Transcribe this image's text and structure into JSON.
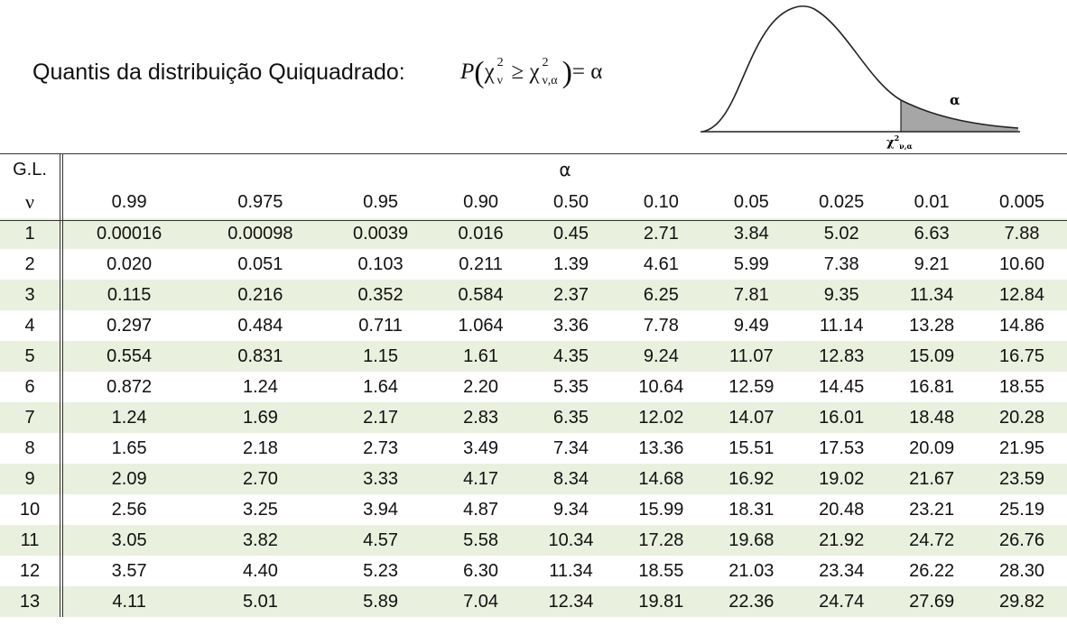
{
  "title": "Quantis da distribuição Quiquadrado:",
  "formula": {
    "p": "P",
    "chi": "χ",
    "sup": "2",
    "sub_nu": "ν",
    "sub_nu_alpha": "ν,α",
    "geq": "≥",
    "eq_alpha": "= α"
  },
  "curve_labels": {
    "alpha": "α",
    "chi": "χ",
    "chi_sup": "2",
    "chi_sub": "ν,α"
  },
  "table": {
    "gl_label": "G.L.",
    "nu_label": "ν",
    "alpha_label": "α",
    "alphas": [
      "0.99",
      "0.975",
      "0.95",
      "0.90",
      "0.50",
      "0.10",
      "0.05",
      "0.025",
      "0.01",
      "0.005"
    ],
    "rows": [
      {
        "nu": "1",
        "vals": [
          "0.00016",
          "0.00098",
          "0.0039",
          "0.016",
          "0.45",
          "2.71",
          "3.84",
          "5.02",
          "6.63",
          "7.88"
        ]
      },
      {
        "nu": "2",
        "vals": [
          "0.020",
          "0.051",
          "0.103",
          "0.211",
          "1.39",
          "4.61",
          "5.99",
          "7.38",
          "9.21",
          "10.60"
        ]
      },
      {
        "nu": "3",
        "vals": [
          "0.115",
          "0.216",
          "0.352",
          "0.584",
          "2.37",
          "6.25",
          "7.81",
          "9.35",
          "11.34",
          "12.84"
        ]
      },
      {
        "nu": "4",
        "vals": [
          "0.297",
          "0.484",
          "0.711",
          "1.064",
          "3.36",
          "7.78",
          "9.49",
          "11.14",
          "13.28",
          "14.86"
        ]
      },
      {
        "nu": "5",
        "vals": [
          "0.554",
          "0.831",
          "1.15",
          "1.61",
          "4.35",
          "9.24",
          "11.07",
          "12.83",
          "15.09",
          "16.75"
        ]
      },
      {
        "nu": "6",
        "vals": [
          "0.872",
          "1.24",
          "1.64",
          "2.20",
          "5.35",
          "10.64",
          "12.59",
          "14.45",
          "16.81",
          "18.55"
        ]
      },
      {
        "nu": "7",
        "vals": [
          "1.24",
          "1.69",
          "2.17",
          "2.83",
          "6.35",
          "12.02",
          "14.07",
          "16.01",
          "18.48",
          "20.28"
        ]
      },
      {
        "nu": "8",
        "vals": [
          "1.65",
          "2.18",
          "2.73",
          "3.49",
          "7.34",
          "13.36",
          "15.51",
          "17.53",
          "20.09",
          "21.95"
        ]
      },
      {
        "nu": "9",
        "vals": [
          "2.09",
          "2.70",
          "3.33",
          "4.17",
          "8.34",
          "14.68",
          "16.92",
          "19.02",
          "21.67",
          "23.59"
        ]
      },
      {
        "nu": "10",
        "vals": [
          "2.56",
          "3.25",
          "3.94",
          "4.87",
          "9.34",
          "15.99",
          "18.31",
          "20.48",
          "23.21",
          "25.19"
        ]
      },
      {
        "nu": "11",
        "vals": [
          "3.05",
          "3.82",
          "4.57",
          "5.58",
          "10.34",
          "17.28",
          "19.68",
          "21.92",
          "24.72",
          "26.76"
        ]
      },
      {
        "nu": "12",
        "vals": [
          "3.57",
          "4.40",
          "5.23",
          "6.30",
          "11.34",
          "18.55",
          "21.03",
          "23.34",
          "26.22",
          "28.30"
        ]
      },
      {
        "nu": "13",
        "vals": [
          "4.11",
          "5.01",
          "5.89",
          "7.04",
          "12.34",
          "19.81",
          "22.36",
          "24.74",
          "27.69",
          "29.82"
        ]
      }
    ]
  },
  "colors": {
    "row_shade": "#eaf0de",
    "tail_fill": "#a6a6a6"
  }
}
